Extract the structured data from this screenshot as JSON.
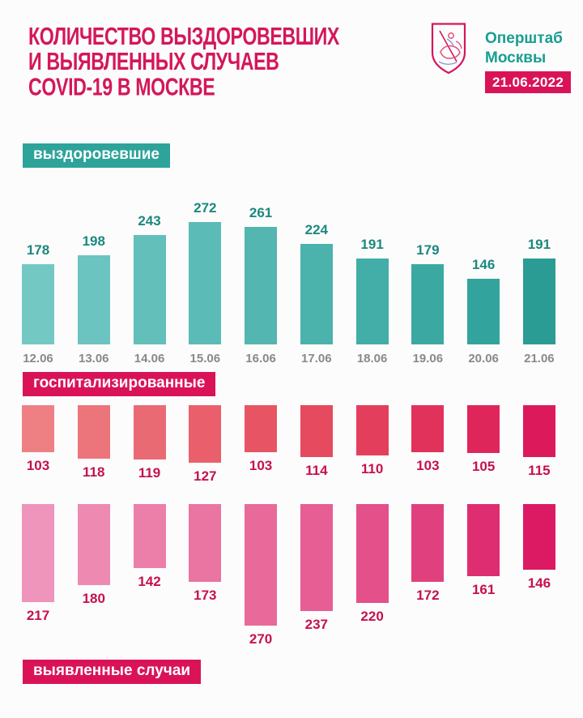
{
  "page": {
    "background": "#FCFCFC"
  },
  "header": {
    "title_lines": [
      "КОЛИЧЕСТВО ВЫЗДОРОВЕВШИХ",
      "И ВЫЯВЛЕННЫХ СЛУЧАЕВ",
      "COVID-19 В МОСКВЕ"
    ],
    "title_color": "#D4175A",
    "org_name_lines": [
      "Оперштаб",
      "Москвы"
    ],
    "org_color": "#189E90",
    "date_badge": {
      "text": "21.06.2022",
      "bg": "#DA1358",
      "color": "#FFFFFF"
    },
    "coat_of_arms_icon": "moscow-coat-of-arms"
  },
  "sections": {
    "recovered": {
      "label": "выздоровевшие",
      "bg": "#2EA39A"
    },
    "hospitalized": {
      "label": "госпитализированные",
      "bg": "#DA1358"
    },
    "detected": {
      "label": "выявленные случаи",
      "bg": "#DA1358"
    }
  },
  "chart_data": [
    {
      "id": "recovered",
      "type": "bar",
      "orientation": "up",
      "title": "выздоровевшие",
      "categories": [
        "12.06",
        "13.06",
        "14.06",
        "15.06",
        "16.06",
        "17.06",
        "18.06",
        "19.06",
        "20.06",
        "21.06"
      ],
      "values": [
        178,
        198,
        243,
        272,
        261,
        224,
        191,
        179,
        146,
        191
      ],
      "show_categories": true,
      "value_label_color": "#1C887E",
      "category_label_color": "#87898C",
      "bar_colors": [
        "#74C8C4",
        "#6CC4C0",
        "#63BFBA",
        "#5BBBB6",
        "#53B6B1",
        "#4BB2AC",
        "#43ADA7",
        "#3BA9A2",
        "#33A49D",
        "#2B9C94"
      ],
      "ylim": [
        0,
        272
      ],
      "grid": false,
      "legend": false
    },
    {
      "id": "hospitalized",
      "type": "bar",
      "orientation": "hanging",
      "title": "госпитализированные",
      "values": [
        103,
        118,
        119,
        127,
        103,
        114,
        110,
        103,
        105,
        115
      ],
      "show_categories": false,
      "value_label_color": "#C5114F",
      "bar_colors": [
        "#EE8084",
        "#EC757C",
        "#EA6A74",
        "#E9606C",
        "#E75564",
        "#E54A5F",
        "#E33F5D",
        "#E1325C",
        "#DF265B",
        "#DC1A5B"
      ],
      "ylim": [
        0,
        127
      ],
      "grid": false,
      "legend": false
    },
    {
      "id": "detected",
      "type": "bar",
      "orientation": "hanging",
      "title": "выявленные случаи",
      "values": [
        217,
        180,
        142,
        173,
        270,
        237,
        220,
        172,
        161,
        146
      ],
      "show_categories": false,
      "value_label_color": "#C5114F",
      "bar_colors": [
        "#EF94BA",
        "#EE8AB2",
        "#EC7FAA",
        "#EA74A2",
        "#E8699A",
        "#E65E93",
        "#E3508A",
        "#E0417E",
        "#DE2D70",
        "#DB1A63"
      ],
      "ylim": [
        0,
        270
      ],
      "grid": false,
      "legend": false
    }
  ]
}
